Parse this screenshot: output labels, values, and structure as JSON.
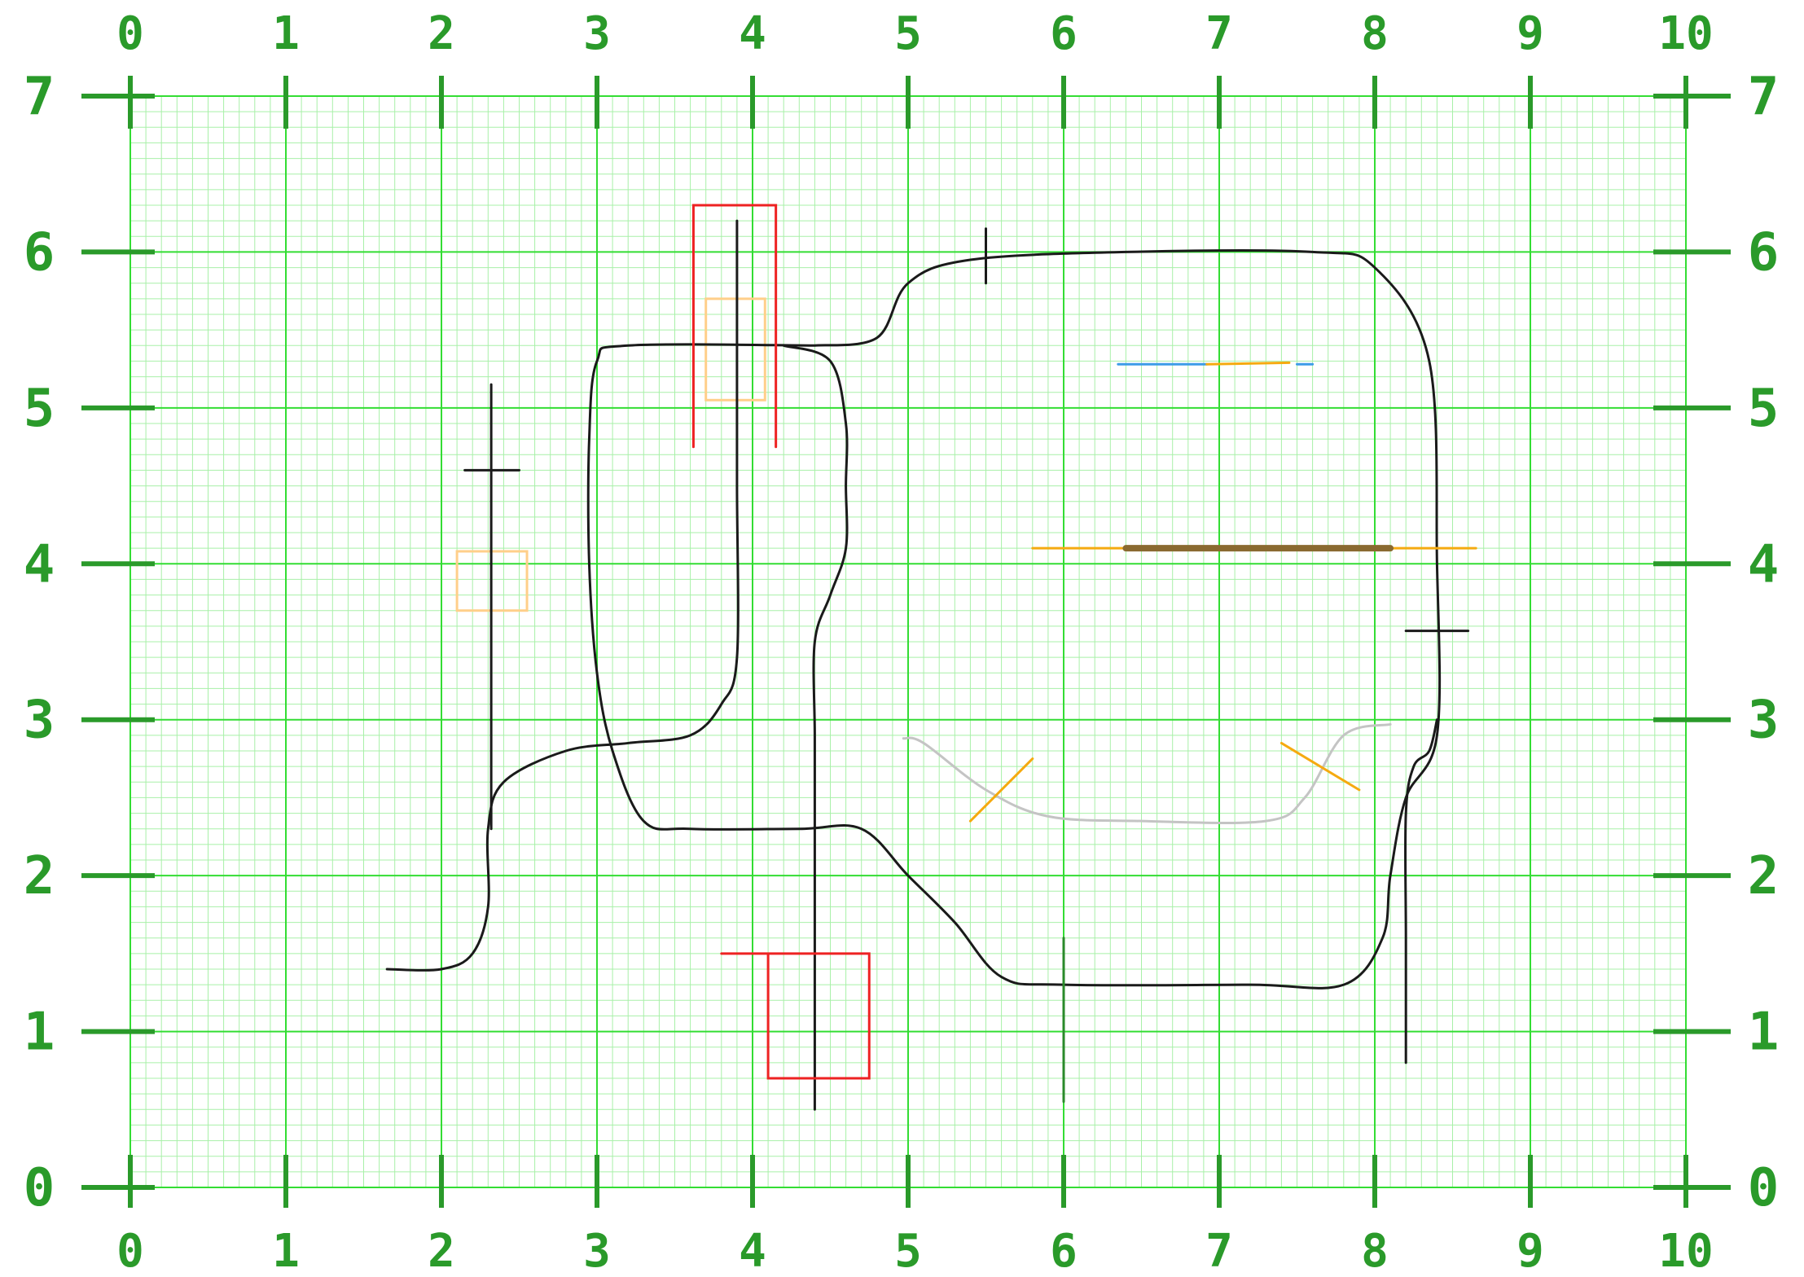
{
  "axes": {
    "x_ticks": [
      "0",
      "1",
      "2",
      "3",
      "4",
      "5",
      "6",
      "7",
      "8",
      "9",
      "10"
    ],
    "y_ticks": [
      "0",
      "1",
      "2",
      "3",
      "4",
      "5",
      "6",
      "7"
    ],
    "x_range": [
      0,
      10
    ],
    "y_range": [
      0,
      7
    ],
    "minor_divisions_per_unit": 10,
    "grid": true
  },
  "colors": {
    "major_grid": "#33dd33",
    "minor_grid": "#a8f0a8",
    "tick_marks": "#2a9a2a",
    "labels": "#2a9a2a",
    "track": "#1a1a1a",
    "red_marker": "#ee2222",
    "orange_marker": "#f5aa10",
    "pale_orange": "#ffcf8a",
    "blue_marker": "#3d9be8",
    "brown_bar": "#8a6a30",
    "grey_curve": "#c4c4c4",
    "dark_green_line": "#2a8a2a"
  },
  "drawing": {
    "tracks": [
      {
        "name": "main-track-loop",
        "color": "track",
        "width": 3,
        "points": [
          [
            4.4,
            5.4
          ],
          [
            4.8,
            5.45
          ],
          [
            5.0,
            5.8
          ],
          [
            5.4,
            5.95
          ],
          [
            6.4,
            6.0
          ],
          [
            7.6,
            6.0
          ],
          [
            8.0,
            5.9
          ],
          [
            8.35,
            5.3
          ],
          [
            8.4,
            4.0
          ],
          [
            8.4,
            2.9
          ],
          [
            8.2,
            2.5
          ],
          [
            8.1,
            2.0
          ],
          [
            8.05,
            1.6
          ],
          [
            7.8,
            1.3
          ],
          [
            7.2,
            1.3
          ],
          [
            6.0,
            1.3
          ],
          [
            5.6,
            1.35
          ],
          [
            5.3,
            1.7
          ],
          [
            5.0,
            2.0
          ],
          [
            4.7,
            2.3
          ],
          [
            4.3,
            2.3
          ],
          [
            3.6,
            2.3
          ],
          [
            3.3,
            2.35
          ],
          [
            3.1,
            2.8
          ],
          [
            3.0,
            3.3
          ],
          [
            2.95,
            4.0
          ],
          [
            2.95,
            4.8
          ],
          [
            3.0,
            5.3
          ],
          [
            3.2,
            5.4
          ],
          [
            4.4,
            5.4
          ]
        ]
      },
      {
        "name": "inner-loop-track",
        "color": "track",
        "width": 3,
        "points": [
          [
            4.2,
            5.4
          ],
          [
            4.5,
            5.3
          ],
          [
            4.6,
            4.9
          ],
          [
            4.6,
            4.5
          ],
          [
            4.6,
            4.1
          ],
          [
            4.5,
            3.8
          ],
          [
            4.4,
            3.5
          ],
          [
            4.4,
            2.9
          ],
          [
            4.4,
            2.3
          ],
          [
            4.4,
            1.5
          ],
          [
            4.4,
            0.5
          ]
        ]
      },
      {
        "name": "left-connector-track",
        "color": "track",
        "width": 3,
        "points": [
          [
            1.65,
            1.4
          ],
          [
            2.0,
            1.4
          ],
          [
            2.2,
            1.5
          ],
          [
            2.3,
            1.8
          ],
          [
            2.3,
            2.3
          ],
          [
            2.4,
            2.6
          ],
          [
            2.8,
            2.8
          ],
          [
            3.2,
            2.85
          ],
          [
            3.6,
            2.9
          ],
          [
            3.8,
            3.1
          ],
          [
            3.9,
            3.4
          ],
          [
            3.9,
            4.5
          ],
          [
            3.9,
            5.4
          ],
          [
            3.9,
            6.2
          ]
        ]
      },
      {
        "name": "left-vertical-track",
        "color": "track",
        "width": 3,
        "points": [
          [
            2.32,
            5.15
          ],
          [
            2.32,
            4.0
          ],
          [
            2.32,
            3.0
          ],
          [
            2.32,
            2.3
          ]
        ]
      },
      {
        "name": "right-spur-track",
        "color": "track",
        "width": 3,
        "points": [
          [
            8.4,
            3.0
          ],
          [
            8.35,
            2.8
          ],
          [
            8.25,
            2.7
          ],
          [
            8.2,
            2.4
          ],
          [
            8.2,
            1.6
          ],
          [
            8.2,
            0.8
          ]
        ]
      }
    ],
    "ticks": [
      {
        "name": "track-tick-top",
        "p1": [
          5.5,
          6.15
        ],
        "p2": [
          5.5,
          5.8
        ],
        "color": "track",
        "width": 3
      },
      {
        "name": "track-tick-left",
        "p1": [
          2.15,
          4.6
        ],
        "p2": [
          2.5,
          4.6
        ],
        "color": "track",
        "width": 3
      },
      {
        "name": "track-tick-right",
        "p1": [
          8.2,
          3.57
        ],
        "p2": [
          8.6,
          3.57
        ],
        "color": "track",
        "width": 3
      },
      {
        "name": "green-tick-bottom",
        "p1": [
          6.0,
          1.6
        ],
        "p2": [
          6.0,
          0.55
        ],
        "color": "dark_green_line",
        "width": 3
      }
    ],
    "polylines": [
      {
        "name": "red-bracket-top",
        "color": "red_marker",
        "width": 3,
        "points": [
          [
            3.62,
            4.75
          ],
          [
            3.62,
            6.3
          ],
          [
            4.15,
            6.3
          ],
          [
            4.15,
            4.75
          ]
        ]
      },
      {
        "name": "red-bracket-bottom",
        "color": "red_marker",
        "width": 3,
        "points": [
          [
            3.8,
            1.5
          ],
          [
            4.75,
            1.5
          ],
          [
            4.75,
            0.7
          ],
          [
            4.1,
            0.7
          ],
          [
            4.1,
            1.5
          ]
        ]
      },
      {
        "name": "orange-diagonal-left",
        "color": "orange_marker",
        "width": 3,
        "points": [
          [
            5.4,
            2.35
          ],
          [
            5.8,
            2.75
          ]
        ]
      },
      {
        "name": "orange-diagonal-right",
        "color": "orange_marker",
        "width": 3,
        "points": [
          [
            7.4,
            2.85
          ],
          [
            7.9,
            2.55
          ]
        ]
      },
      {
        "name": "orange-long-line",
        "color": "orange_marker",
        "width": 3,
        "points": [
          [
            5.8,
            4.1
          ],
          [
            8.65,
            4.1
          ]
        ]
      },
      {
        "name": "brown-bar",
        "color": "brown_bar",
        "width": 8,
        "points": [
          [
            6.4,
            4.1
          ],
          [
            8.1,
            4.1
          ]
        ]
      },
      {
        "name": "blue-line",
        "color": "blue_marker",
        "width": 3,
        "points": [
          [
            6.35,
            5.28
          ],
          [
            6.92,
            5.28
          ]
        ]
      },
      {
        "name": "orange-short-line",
        "color": "orange_marker",
        "width": 3,
        "points": [
          [
            6.92,
            5.28
          ],
          [
            7.45,
            5.29
          ]
        ]
      },
      {
        "name": "blue-dash",
        "color": "blue_marker",
        "width": 3,
        "points": [
          [
            7.5,
            5.28
          ],
          [
            7.6,
            5.28
          ]
        ]
      },
      {
        "name": "grey-curve",
        "color": "grey_curve",
        "width": 3,
        "points": [
          [
            4.97,
            2.88
          ],
          [
            5.1,
            2.85
          ],
          [
            5.5,
            2.55
          ],
          [
            5.9,
            2.38
          ],
          [
            6.5,
            2.35
          ],
          [
            7.3,
            2.35
          ],
          [
            7.55,
            2.5
          ],
          [
            7.8,
            2.9
          ],
          [
            8.1,
            2.97
          ]
        ]
      }
    ],
    "rects": [
      {
        "name": "pale-orange-box-top",
        "color": "pale_orange",
        "x": 3.7,
        "y": 5.05,
        "w": 0.38,
        "h": 0.65
      },
      {
        "name": "pale-orange-box-left",
        "color": "pale_orange",
        "x": 2.1,
        "y": 3.7,
        "w": 0.45,
        "h": 0.38
      }
    ]
  }
}
